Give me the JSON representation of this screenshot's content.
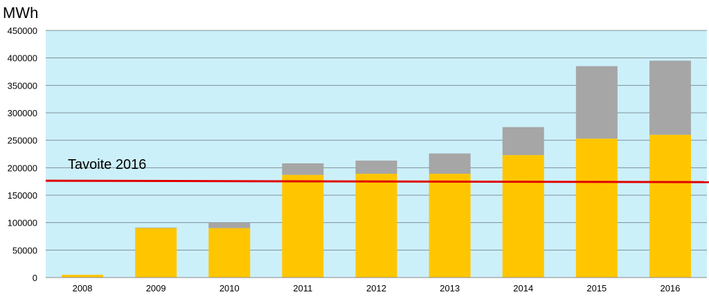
{
  "chart_data": {
    "type": "bar",
    "stacked": true,
    "ylabel": "MWh",
    "categories": [
      "2008",
      "2009",
      "2010",
      "2011",
      "2012",
      "2013",
      "2014",
      "2015",
      "2016"
    ],
    "series": [
      {
        "values": [
          5000,
          90000,
          90000,
          187000,
          189000,
          189000,
          223000,
          253000,
          260000
        ],
        "color": "#ffc600"
      },
      {
        "values": [
          0,
          1000,
          10000,
          21000,
          24000,
          37000,
          51000,
          132000,
          135000
        ],
        "color": "#a6a6a6"
      }
    ],
    "ylim": [
      0,
      450000
    ],
    "yticks": [
      "0",
      "50000",
      "100000",
      "150000",
      "200000",
      "250000",
      "300000",
      "350000",
      "400000",
      "450000"
    ],
    "grid": true,
    "plot_background": "#ccf0fa",
    "target_line": {
      "label": "Tavoite 2016",
      "value": 175000,
      "color": "#e00000"
    }
  }
}
